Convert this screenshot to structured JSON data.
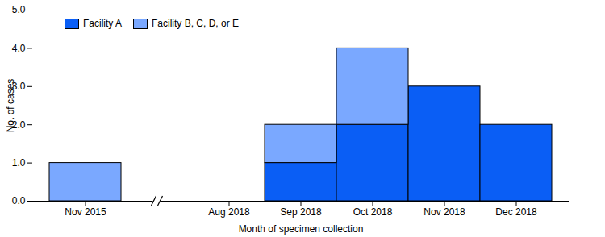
{
  "chart_data": {
    "type": "bar",
    "stacked": true,
    "legend": "top-left",
    "x_label": "Month of specimen collection",
    "y_label": "No. of cases",
    "categories": [
      "Nov 2015",
      null,
      "Aug 2018",
      "Sep 2018",
      "Oct 2018",
      "Nov 2018",
      "Dec 2018"
    ],
    "series": [
      {
        "name": "Facility A",
        "color": "#0a5ef5",
        "values": [
          0,
          0,
          0,
          1,
          2,
          3,
          2
        ]
      },
      {
        "name": "Facility B, C, D, or E",
        "color": "#7aa8ff",
        "values": [
          1,
          0,
          0,
          1,
          2,
          0,
          0
        ]
      }
    ],
    "ylim": [
      0,
      5
    ],
    "yticks": [
      0,
      1,
      2,
      3,
      4,
      5
    ]
  }
}
